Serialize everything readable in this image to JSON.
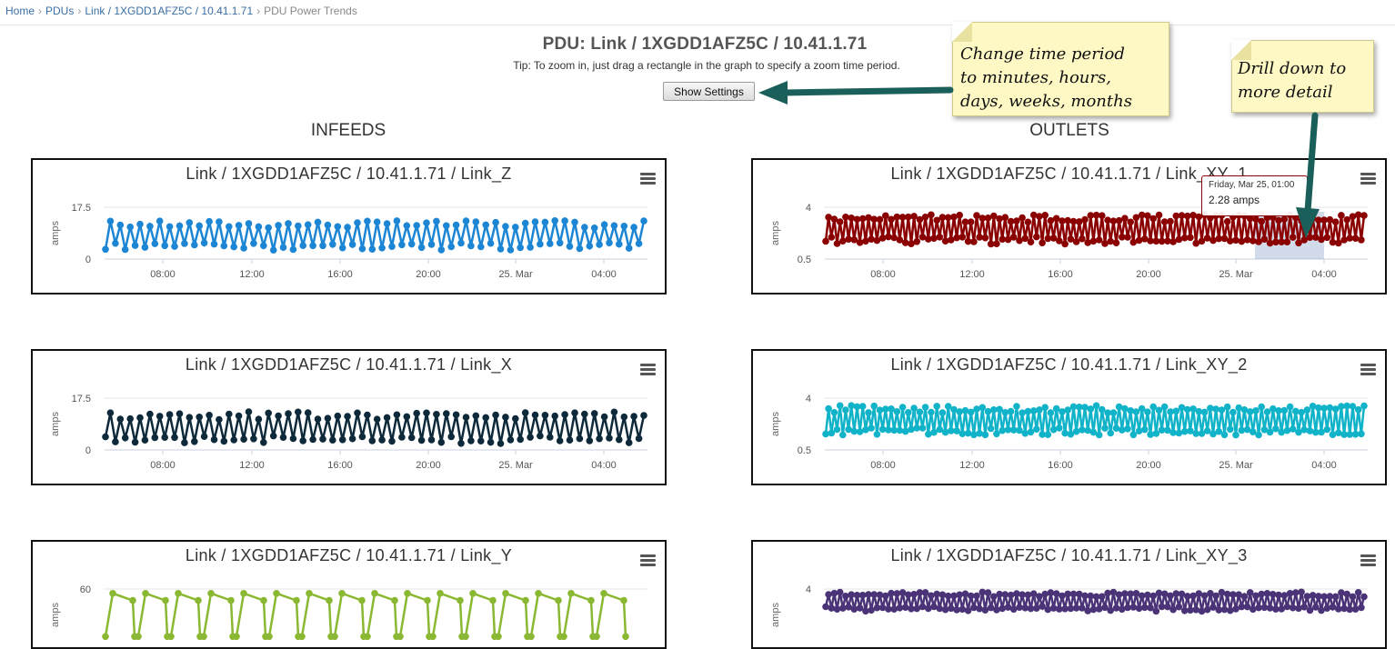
{
  "breadcrumb": [
    {
      "label": "Home",
      "link": true
    },
    {
      "label": "PDUs",
      "link": true
    },
    {
      "label": "Link / 1XGDD1AFZ5C / 10.41.1.71",
      "link": true
    },
    {
      "label": "PDU Power Trends",
      "link": false
    }
  ],
  "page": {
    "title": "PDU: Link / 1XGDD1AFZ5C / 10.41.1.71",
    "tip": "Tip: To zoom in, just drag a rectangle in the graph to specify a zoom time period.",
    "settings_button": "Show Settings",
    "infeeds_heading": "INFEEDS",
    "outlets_heading": "OUTLETS"
  },
  "annotations": {
    "time_period_note": "Change time period to minutes, hours, days, weeks, months",
    "time_period_lines": [
      "Change time period",
      "to minutes, hours,",
      "days, weeks, months"
    ],
    "drill_note": "Drill down to more detail",
    "drill_lines": [
      "Drill down to",
      "more detail"
    ]
  },
  "tooltip": {
    "date": "Friday, Mar 25, 01:00",
    "value": "2.28 amps"
  },
  "chart_data": [
    {
      "type": "line",
      "title": "Link / 1XGDD1AFZ5C / 10.41.1.71 / Link_Z",
      "ylabel": "amps",
      "yticks": [
        "17.5",
        "0"
      ],
      "xticks": [
        "08:00",
        "12:00",
        "16:00",
        "20:00",
        "25. Mar",
        "04:00"
      ],
      "ylim": [
        0,
        17.5
      ],
      "value_range": [
        3,
        13
      ],
      "pattern": "oscillating",
      "color": "#1c86d4"
    },
    {
      "type": "line",
      "title": "Link / 1XGDD1AFZ5C / 10.41.1.71 / Link_X",
      "ylabel": "amps",
      "yticks": [
        "17.5",
        "0"
      ],
      "xticks": [
        "08:00",
        "12:00",
        "16:00",
        "20:00",
        "25. Mar",
        "04:00"
      ],
      "ylim": [
        0,
        17.5
      ],
      "value_range": [
        2,
        13
      ],
      "pattern": "oscillating",
      "color": "#0e2a3a"
    },
    {
      "type": "line",
      "title": "Link / 1XGDD1AFZ5C / 10.41.1.71 / Link_Y",
      "ylabel": "amps",
      "yticks": [
        "60"
      ],
      "xticks": [],
      "ylim": [
        0,
        60
      ],
      "value_range": [
        5,
        55
      ],
      "pattern": "sawtooth",
      "color": "#8ab832"
    },
    {
      "type": "line",
      "title": "Link / 1XGDD1AFZ5C / 10.41.1.71 / Link_XY_1",
      "ylabel": "amps",
      "yticks": [
        "4",
        "0.5"
      ],
      "xticks": [
        "08:00",
        "12:00",
        "16:00",
        "20:00",
        "25. Mar",
        "04:00"
      ],
      "ylim": [
        0.5,
        4
      ],
      "value_range": [
        1.5,
        3.5
      ],
      "pattern": "oscillating",
      "color": "#8b0000",
      "selection": true
    },
    {
      "type": "line",
      "title": "Link / 1XGDD1AFZ5C / 10.41.1.71 / Link_XY_2",
      "ylabel": "amps",
      "yticks": [
        "4",
        "0.5"
      ],
      "xticks": [
        "08:00",
        "12:00",
        "16:00",
        "20:00",
        "25. Mar",
        "04:00"
      ],
      "ylim": [
        0.5,
        4
      ],
      "value_range": [
        1.5,
        3.5
      ],
      "pattern": "oscillating",
      "color": "#11b3c9"
    },
    {
      "type": "line",
      "title": "Link / 1XGDD1AFZ5C / 10.41.1.71 / Link_XY_3",
      "ylabel": "amps",
      "yticks": [
        "4"
      ],
      "xticks": [],
      "ylim": [
        0.5,
        4
      ],
      "value_range": [
        2.5,
        3.8
      ],
      "pattern": "oscillating",
      "color": "#4a3477"
    }
  ],
  "colors": {
    "link": "#3a6ea5",
    "note_bg": "#fdf8c4",
    "arrow": "#1b5f5a"
  }
}
